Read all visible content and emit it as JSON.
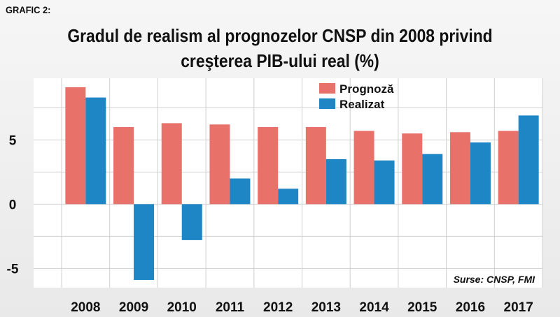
{
  "header": {
    "tag": "GRAFIC 2:",
    "title_line1": "Gradul de realism al prognozelor CNSP din 2008 privind",
    "title_line2": "creşterea PIB-ului real (%)"
  },
  "source": "Surse: CNSP, FMI",
  "colors": {
    "prognoza": "#e8716a",
    "realizat": "#1f86c6",
    "grid": "#cfcfcf",
    "plot_bg": "#ffffff"
  },
  "chart_data": {
    "type": "bar",
    "categories": [
      "2008",
      "2009",
      "2010",
      "2011",
      "2012",
      "2013",
      "2014",
      "2015",
      "2016",
      "2017"
    ],
    "series": [
      {
        "name": "Prognoză",
        "values": [
          9.1,
          6.0,
          6.3,
          6.2,
          6.0,
          6.0,
          5.7,
          5.5,
          5.6,
          5.7
        ]
      },
      {
        "name": "Realizat",
        "values": [
          8.3,
          -5.9,
          -2.8,
          2.0,
          1.2,
          3.5,
          3.4,
          3.9,
          4.8,
          6.9
        ]
      }
    ],
    "y_ticks": [
      5,
      0,
      -5
    ],
    "ylim": [
      -6.5,
      9.8
    ],
    "grid": true,
    "legend_position": "top-center",
    "title": "Gradul de realism al prognozelor CNSP din 2008 privind creşterea PIB-ului real (%)"
  }
}
